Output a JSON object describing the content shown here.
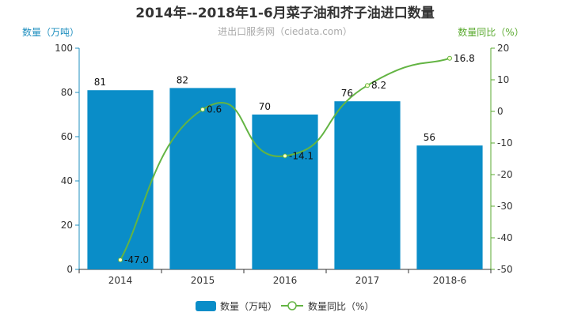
{
  "chart_data": {
    "type": "bar",
    "title": "2014年--2018年1-6月菜子油和芥子油进口数量",
    "subtitle": "进出口服务网（ciedata.com）",
    "categories": [
      "2014",
      "2015",
      "2016",
      "2017",
      "2018-6"
    ],
    "series": [
      {
        "name": "数量（万吨）",
        "type": "bar",
        "axis": "left",
        "values": [
          81,
          82,
          70,
          76,
          56
        ]
      },
      {
        "name": "数量同比（%）",
        "type": "line",
        "axis": "right",
        "values": [
          -47.0,
          0.6,
          -14.1,
          8.2,
          16.8
        ]
      }
    ],
    "yaxis_left": {
      "label": "数量（万吨）",
      "range": [
        0,
        100
      ],
      "ticks": [
        0,
        20,
        40,
        60,
        80,
        100
      ]
    },
    "yaxis_right": {
      "label": "数量同比（%）",
      "range": [
        -50,
        20
      ],
      "ticks": [
        -50,
        -40,
        -30,
        -20,
        -10,
        0,
        10,
        20
      ]
    },
    "data_labels": {
      "bar": [
        "81",
        "82",
        "70",
        "76",
        "56"
      ],
      "line": [
        "-47.0",
        "0.6",
        "-14.1",
        "8.2",
        "16.8"
      ]
    },
    "colors": {
      "bar": "#0a8dc8",
      "line": "#63b443",
      "left_axis": "#1f8fbf",
      "right_axis": "#5aaa2f",
      "title": "#333333"
    },
    "grid": false,
    "legend": "bottom-center"
  }
}
